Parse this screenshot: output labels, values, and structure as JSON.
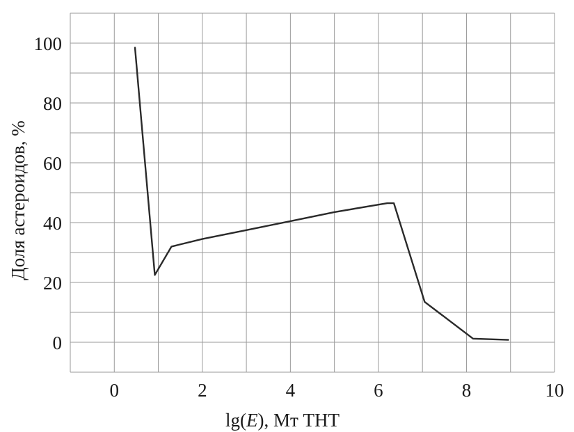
{
  "chart_data": {
    "type": "line",
    "xlabel_parts": [
      "lg(",
      "E",
      "), Мт ТНТ"
    ],
    "ylabel": "Доля астероидов, %",
    "xlim": [
      -1,
      10
    ],
    "ylim": [
      -10,
      110
    ],
    "x_ticks": [
      0,
      2,
      4,
      6,
      8,
      10
    ],
    "x_tick_labels": [
      "0",
      "2",
      "4",
      "6",
      "8",
      "10"
    ],
    "y_ticks": [
      0,
      20,
      40,
      60,
      80,
      100
    ],
    "y_tick_labels": [
      "0",
      "20",
      "40",
      "60",
      "80",
      "100"
    ],
    "grid": true,
    "grid_x_step": 1,
    "grid_y_step": 10,
    "series": [
      {
        "x": [
          0.47,
          0.92,
          1.3,
          2.0,
          3.0,
          4.0,
          5.0,
          6.0,
          6.2,
          6.35,
          7.05,
          8.15,
          8.95
        ],
        "y": [
          98.5,
          22.5,
          32,
          34.5,
          37.5,
          40.5,
          43.5,
          46,
          46.5,
          46.5,
          13.5,
          1.2,
          0.8
        ]
      }
    ],
    "colors": {
      "line": "#2a2a2a",
      "grid": "#9a9a9a",
      "text": "#1a1a1a"
    }
  }
}
